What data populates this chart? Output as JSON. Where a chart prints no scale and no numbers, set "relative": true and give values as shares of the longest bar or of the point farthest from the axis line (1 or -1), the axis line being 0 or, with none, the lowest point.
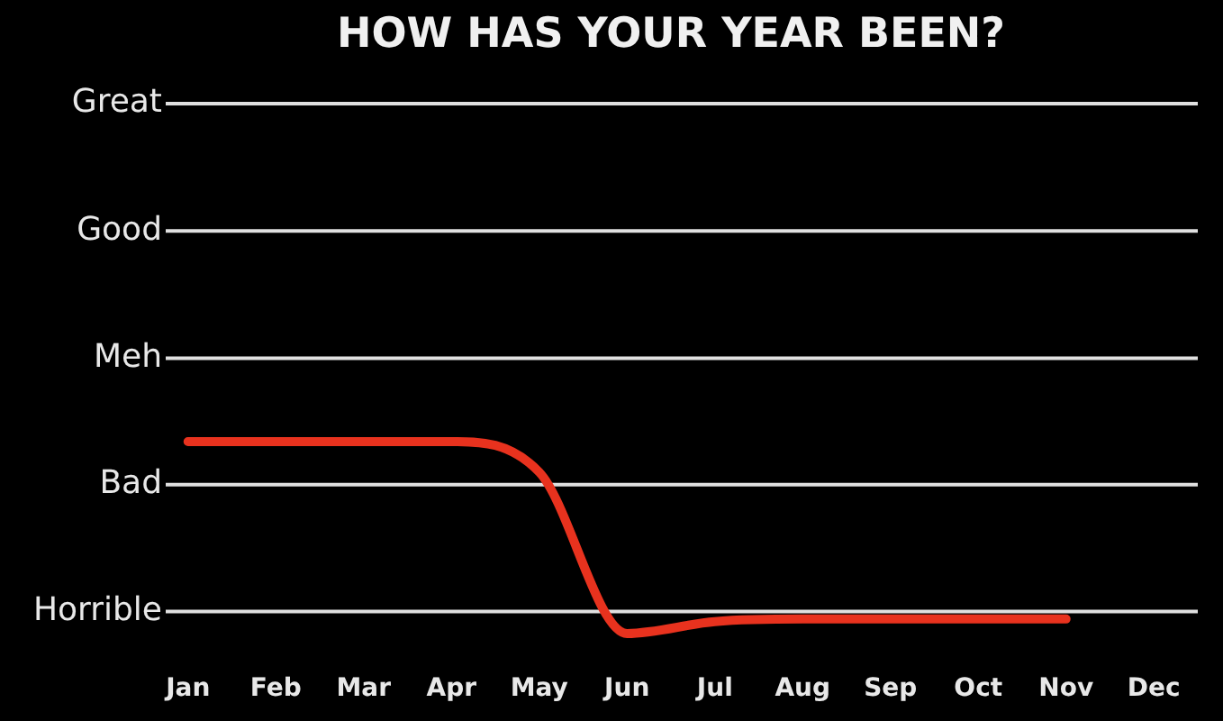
{
  "chart_data": {
    "type": "line",
    "title": "HOW HAS YOUR YEAR BEEN?",
    "relative": true,
    "categories": [
      "Jan",
      "Feb",
      "Mar",
      "Apr",
      "May",
      "Jun",
      "Jul",
      "Aug",
      "Sep",
      "Oct",
      "Nov",
      "Dec"
    ],
    "series": [
      {
        "color": "#e8321e",
        "values": [
          1,
          1,
          1,
          1,
          0.82,
          -0.13,
          -0.06,
          -0.045,
          -0.045,
          -0.045,
          -0.045,
          null
        ]
      }
    ],
    "ref_lines": [
      {
        "axis": "y",
        "value": 2.99,
        "label": "Great",
        "color": "#e0e0e0"
      },
      {
        "axis": "y",
        "value": 2.24,
        "label": "Good",
        "color": "#e0e0e0"
      },
      {
        "axis": "y",
        "value": 1.49,
        "label": "Meh",
        "color": "#e0e0e0"
      },
      {
        "axis": "y",
        "value": 0.746,
        "label": "Bad",
        "color": "#e0e0e0"
      },
      {
        "axis": "y",
        "value": 0,
        "label": "Horrible",
        "color": "#e0e0e0"
      }
    ],
    "legend": false,
    "marker": "none",
    "line_style": "solid"
  }
}
